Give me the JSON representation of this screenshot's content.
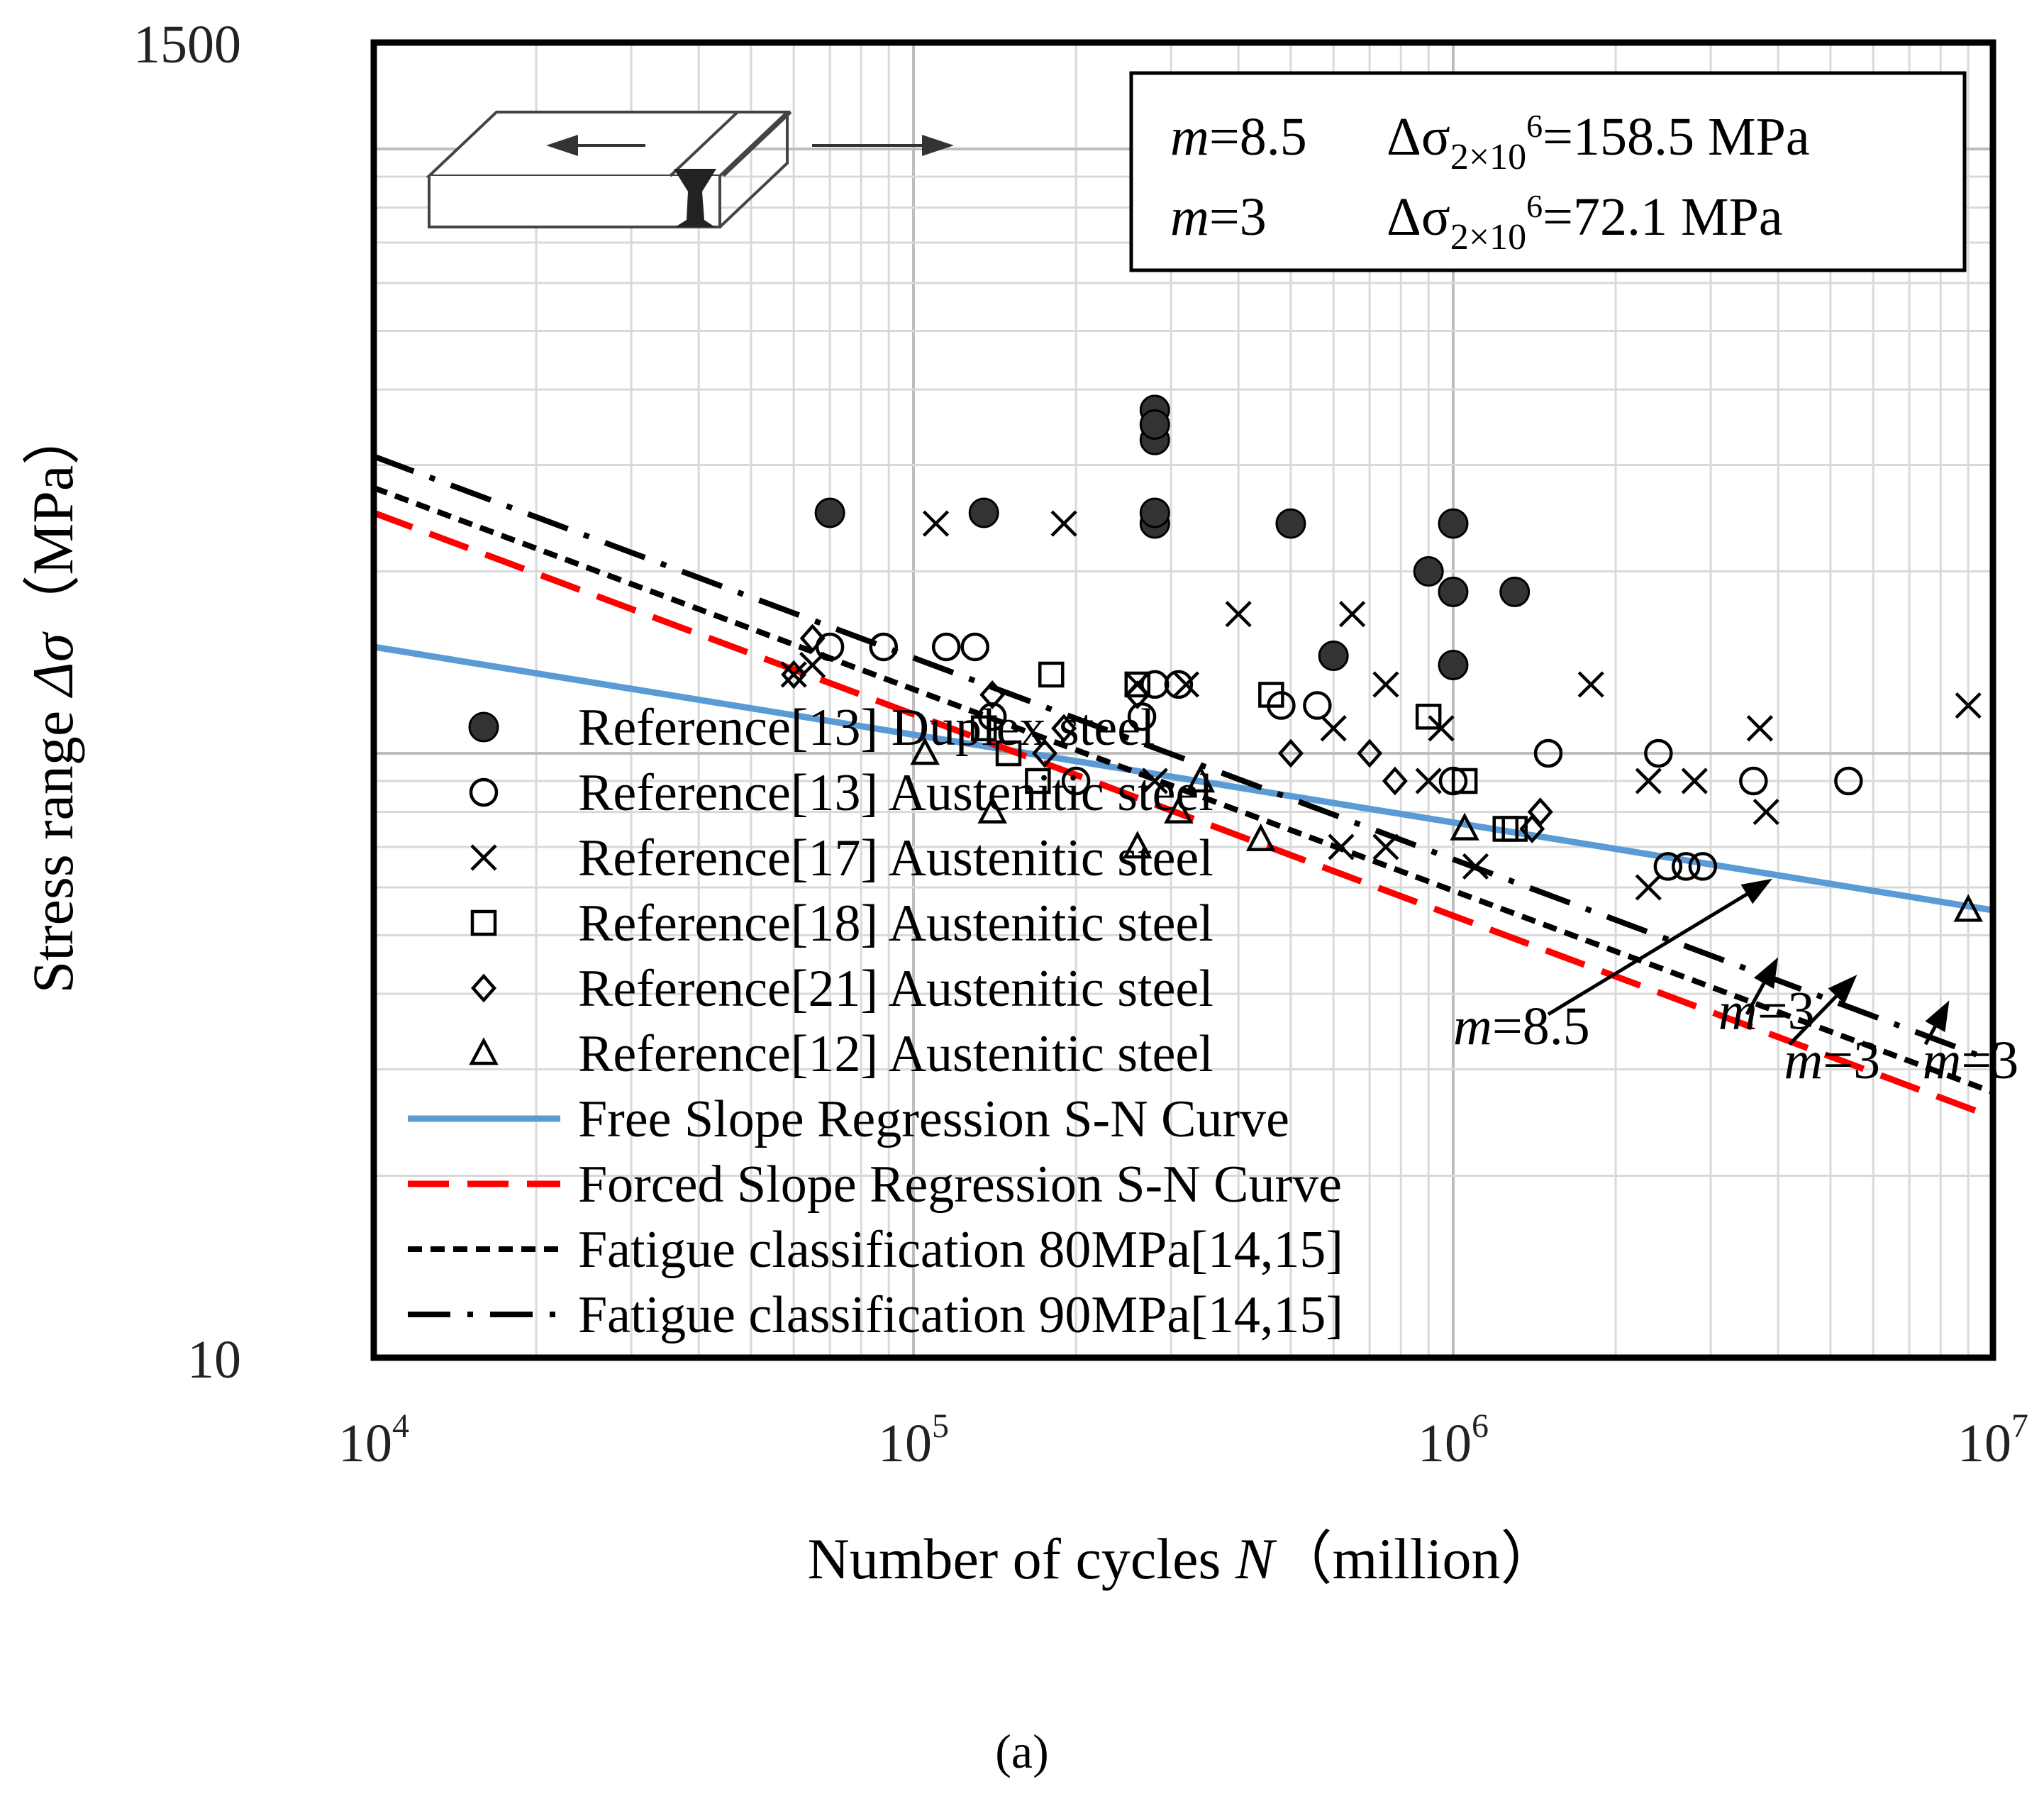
{
  "chart_data": {
    "type": "scatter",
    "xlabel_parts": [
      "Number of cycles ",
      "N",
      "（million）"
    ],
    "ylabel_parts": [
      "Stress range ",
      "Δσ",
      "（MPa）"
    ],
    "x_scale": "log",
    "y_scale": "log",
    "xlim": [
      10000,
      10000000
    ],
    "ylim": [
      10,
      1500
    ],
    "x_ticks": [
      {
        "base": "10",
        "exp": "4",
        "value": 10000
      },
      {
        "base": "10",
        "exp": "5",
        "value": 100000
      },
      {
        "base": "10",
        "exp": "6",
        "value": 1000000
      },
      {
        "base": "10",
        "exp": "7",
        "value": 10000000
      }
    ],
    "y_ticks": [
      {
        "label": "10",
        "value": 10
      },
      {
        "label": "1500",
        "value": 1500
      }
    ],
    "grid": true,
    "legend_position": "bottom-left",
    "info_box": {
      "rows": [
        {
          "m_label": "m",
          "m_value": "=8.5",
          "delta": "Δσ",
          "sub": "2×10",
          "sup": "6",
          "value": "=158.5 MPa"
        },
        {
          "m_label": "m",
          "m_value": "=3",
          "delta": "Δσ",
          "sub": "2×10",
          "sup": "6",
          "value": "=72.1 MPa"
        }
      ]
    },
    "series": [
      {
        "name": "Reference[13] Duplex steel",
        "marker": "filled-circle",
        "points": [
          [
            70000,
            250
          ],
          [
            135000,
            250
          ],
          [
            280000,
            240
          ],
          [
            280000,
            250
          ],
          [
            280000,
            370
          ],
          [
            280000,
            330
          ],
          [
            280000,
            350
          ],
          [
            500000,
            240
          ],
          [
            600000,
            145
          ],
          [
            900000,
            200
          ],
          [
            1000000,
            240
          ],
          [
            1000000,
            185
          ],
          [
            1000000,
            140
          ],
          [
            1300000,
            185
          ]
        ]
      },
      {
        "name": "Reference[13] Austenitic steel",
        "marker": "open-circle",
        "points": [
          [
            70000,
            150
          ],
          [
            88000,
            150
          ],
          [
            115000,
            150
          ],
          [
            130000,
            150
          ],
          [
            140000,
            115
          ],
          [
            200000,
            90
          ],
          [
            265000,
            115
          ],
          [
            280000,
            130
          ],
          [
            310000,
            130
          ],
          [
            480000,
            120
          ],
          [
            560000,
            120
          ],
          [
            1000000,
            90
          ],
          [
            1500000,
            100
          ],
          [
            2400000,
            100
          ],
          [
            2500000,
            65
          ],
          [
            2700000,
            65
          ],
          [
            2900000,
            65
          ],
          [
            3600000,
            90
          ],
          [
            5400000,
            90
          ]
        ]
      },
      {
        "name": "Reference[17] Austenitic steel",
        "marker": "cross",
        "points": [
          [
            60000,
            135
          ],
          [
            65000,
            140
          ],
          [
            110000,
            240
          ],
          [
            190000,
            240
          ],
          [
            260000,
            130
          ],
          [
            280000,
            90
          ],
          [
            320000,
            130
          ],
          [
            400000,
            170
          ],
          [
            600000,
            110
          ],
          [
            620000,
            70
          ],
          [
            650000,
            170
          ],
          [
            750000,
            130
          ],
          [
            750000,
            70
          ],
          [
            900000,
            90
          ],
          [
            950000,
            110
          ],
          [
            1100000,
            65
          ],
          [
            1800000,
            130
          ],
          [
            2300000,
            90
          ],
          [
            2300000,
            60
          ],
          [
            2800000,
            90
          ],
          [
            3700000,
            110
          ],
          [
            3800000,
            80
          ],
          [
            9000000,
            120
          ]
        ]
      },
      {
        "name": "Reference[18] Austenitic steel",
        "marker": "open-square",
        "points": [
          [
            135000,
            110
          ],
          [
            150000,
            100
          ],
          [
            170000,
            90
          ],
          [
            180000,
            135
          ],
          [
            260000,
            130
          ],
          [
            460000,
            125
          ],
          [
            900000,
            115
          ],
          [
            1050000,
            90
          ],
          [
            1250000,
            75
          ],
          [
            1300000,
            75
          ]
        ]
      },
      {
        "name": "Reference[21] Austenitic steel",
        "marker": "open-diamond",
        "points": [
          [
            60000,
            135
          ],
          [
            65000,
            155
          ],
          [
            140000,
            125
          ],
          [
            175000,
            100
          ],
          [
            190000,
            110
          ],
          [
            260000,
            125
          ],
          [
            500000,
            100
          ],
          [
            700000,
            100
          ],
          [
            780000,
            90
          ],
          [
            1400000,
            75
          ],
          [
            1450000,
            80
          ]
        ]
      },
      {
        "name": "Reference[12] Austenitic steel",
        "marker": "open-triangle",
        "points": [
          [
            105000,
            100
          ],
          [
            140000,
            80
          ],
          [
            260000,
            70
          ],
          [
            310000,
            80
          ],
          [
            340000,
            90
          ],
          [
            440000,
            72
          ],
          [
            1050000,
            75
          ],
          [
            9000000,
            55
          ]
        ]
      }
    ],
    "lines": [
      {
        "name": "Free Slope Regression S-N Curve",
        "color": "#5b9bd5",
        "dash": "solid",
        "points": [
          [
            10000,
            150
          ],
          [
            10000000,
            55
          ]
        ]
      },
      {
        "name": "Forced Slope Regression S-N Curve",
        "color": "#ff0000",
        "dash": "long-dash",
        "points": [
          [
            10000,
            250
          ],
          [
            10000000,
            25
          ]
        ]
      },
      {
        "name": "Fatigue classification 80MPa[14,15]",
        "color": "#000000",
        "dash": "short-dash",
        "points": [
          [
            10000,
            275
          ],
          [
            10000000,
            27.5
          ]
        ]
      },
      {
        "name": "Fatigue classification 90MPa[14,15]",
        "color": "#000000",
        "dash": "dash-dot",
        "points": [
          [
            10000,
            310
          ],
          [
            10000000,
            31
          ]
        ]
      }
    ],
    "annotations": [
      {
        "label_italic": "m",
        "label": "=8.5",
        "text_xy": [
          1000000,
          33
        ],
        "arrow_from": [
          1500000,
          37
        ],
        "arrow_to": [
          3900000,
          62
        ]
      },
      {
        "label_italic": "m",
        "label": "=3",
        "text_xy": [
          3100000,
          35
        ],
        "arrow_from": [
          3500000,
          37
        ],
        "arrow_to": [
          4000000,
          46
        ]
      },
      {
        "label_italic": "m",
        "label": "=3",
        "text_xy": [
          4100000,
          29
        ],
        "arrow_from": [
          4200000,
          33
        ],
        "arrow_to": [
          5600000,
          43
        ]
      },
      {
        "label_italic": "m",
        "label": "=3",
        "text_xy": [
          7400000,
          29
        ],
        "arrow_from": [
          7500000,
          33
        ],
        "arrow_to": [
          8300000,
          39
        ]
      }
    ]
  },
  "caption": {
    "text": "(a)"
  }
}
